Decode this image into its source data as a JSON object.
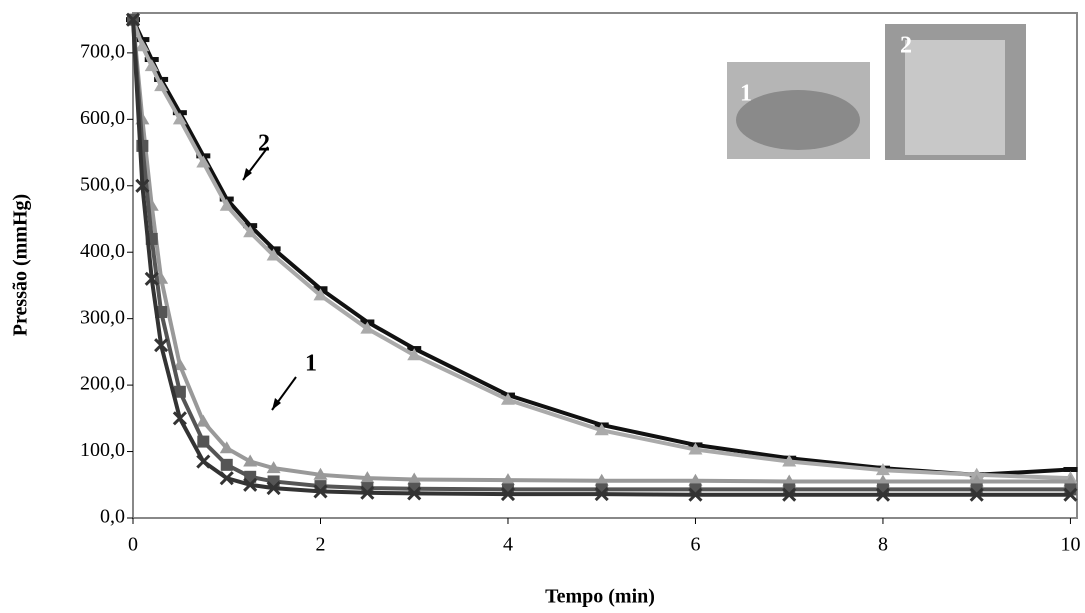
{
  "chart_data": {
    "type": "line",
    "x_label": "Tempo (min)",
    "y_label": "Pressão (mmHg)",
    "x": [
      0,
      0.1,
      0.2,
      0.3,
      0.5,
      0.75,
      1,
      1.25,
      1.5,
      2,
      2.5,
      3,
      4,
      5,
      6,
      7,
      8,
      9,
      10
    ],
    "series": [
      {
        "color": "#111111",
        "marker": "dash",
        "values": [
          750,
          720,
          690,
          660,
          610,
          545,
          480,
          440,
          405,
          345,
          295,
          255,
          185,
          140,
          110,
          90,
          75,
          65,
          73
        ]
      },
      {
        "color": "#aaaaaa",
        "marker": "triangle",
        "values": [
          750,
          710,
          680,
          650,
          600,
          535,
          470,
          430,
          395,
          335,
          285,
          245,
          178,
          132,
          103,
          85,
          72,
          65,
          60
        ]
      },
      {
        "color": "#999999",
        "marker": "triangle",
        "values": [
          750,
          600,
          470,
          360,
          230,
          145,
          105,
          85,
          75,
          65,
          60,
          58,
          57,
          56,
          56,
          55,
          55,
          55,
          55
        ]
      },
      {
        "color": "#555555",
        "marker": "square",
        "values": [
          750,
          560,
          420,
          310,
          190,
          115,
          80,
          62,
          55,
          48,
          45,
          44,
          43,
          43,
          43,
          43,
          43,
          43,
          43
        ]
      },
      {
        "color": "#333333",
        "marker": "cross",
        "values": [
          750,
          500,
          360,
          260,
          150,
          85,
          60,
          50,
          45,
          40,
          38,
          37,
          36,
          36,
          35,
          35,
          35,
          35,
          35
        ]
      }
    ],
    "xlim": [
      0,
      10.07
    ],
    "ylim": [
      0,
      760
    ],
    "xticks": [
      0,
      2,
      4,
      6,
      8,
      10
    ],
    "yticks": [
      {
        "value": 0,
        "label": "0,0"
      },
      {
        "value": 100,
        "label": "100,0"
      },
      {
        "value": 200,
        "label": "200,0"
      },
      {
        "value": 300,
        "label": "300,0"
      },
      {
        "value": 400,
        "label": "400,0"
      },
      {
        "value": 500,
        "label": "500,0"
      },
      {
        "value": 600,
        "label": "600,0"
      },
      {
        "value": 700,
        "label": "700,0"
      }
    ],
    "annotations": [
      "2",
      "1"
    ],
    "inset_labels": [
      "1",
      "2"
    ]
  }
}
